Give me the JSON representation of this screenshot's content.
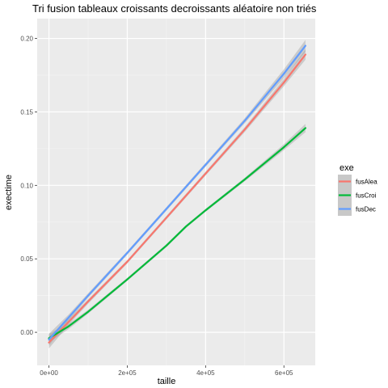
{
  "chart_data": {
    "type": "line",
    "title": "Tri fusion tableaux croissants decroissants aléatoire non triés",
    "xlabel": "taille",
    "ylabel": "exectime",
    "xlim": [
      -30000,
      680000
    ],
    "ylim": [
      -0.0225,
      0.2135
    ],
    "x_ticks": [
      {
        "value": 0,
        "label": "0e+00"
      },
      {
        "value": 200000,
        "label": "2e+05"
      },
      {
        "value": 400000,
        "label": "4e+05"
      },
      {
        "value": 600000,
        "label": "6e+05"
      }
    ],
    "y_ticks": [
      {
        "value": 0.0,
        "label": "0.00"
      },
      {
        "value": 0.05,
        "label": "0.05"
      },
      {
        "value": 0.1,
        "label": "0.10"
      },
      {
        "value": 0.15,
        "label": "0.15"
      },
      {
        "value": 0.2,
        "label": "0.20"
      }
    ],
    "grid": true,
    "legend": {
      "title": "exe",
      "placement": "right"
    },
    "series": [
      {
        "name": "fusAlea",
        "color": "#F8766D",
        "x": [
          0,
          50000,
          100000,
          200000,
          300000,
          400000,
          500000,
          600000,
          655000
        ],
        "y": [
          -0.007,
          0.007,
          0.021,
          0.048,
          0.078,
          0.108,
          0.138,
          0.17,
          0.189
        ],
        "band": [
          0.004,
          0.002,
          0.0015,
          0.0012,
          0.0012,
          0.0013,
          0.0017,
          0.0025,
          0.0035
        ]
      },
      {
        "name": "fusCroi",
        "color": "#00BA38",
        "x": [
          0,
          50000,
          100000,
          200000,
          300000,
          350000,
          400000,
          500000,
          600000,
          655000
        ],
        "y": [
          -0.004,
          0.004,
          0.014,
          0.036,
          0.059,
          0.072,
          0.083,
          0.104,
          0.126,
          0.139
        ],
        "band": [
          0.003,
          0.0018,
          0.0013,
          0.001,
          0.001,
          0.001,
          0.001,
          0.0012,
          0.002,
          0.0028
        ]
      },
      {
        "name": "fusDec",
        "color": "#619CFF",
        "x": [
          0,
          50000,
          100000,
          200000,
          300000,
          400000,
          500000,
          600000,
          655000
        ],
        "y": [
          -0.005,
          0.01,
          0.025,
          0.054,
          0.084,
          0.114,
          0.144,
          0.176,
          0.195
        ],
        "band": [
          0.004,
          0.002,
          0.0015,
          0.0012,
          0.0012,
          0.0013,
          0.0017,
          0.003,
          0.004
        ]
      }
    ]
  }
}
